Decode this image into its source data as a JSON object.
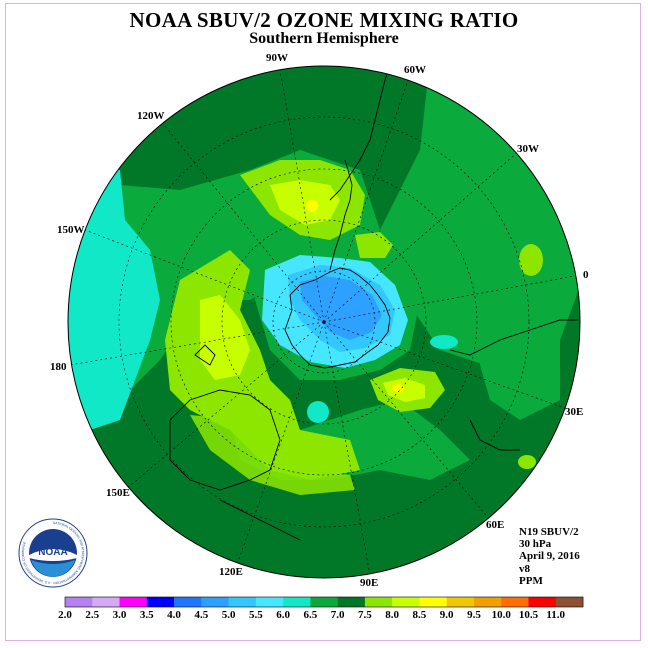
{
  "title": "NOAA SBUV/2 OZONE MIXING RATIO",
  "subtitle": "Southern Hemisphere",
  "longitude_labels": [
    "90W",
    "60W",
    "30W",
    "0",
    "30E",
    "60E",
    "90E",
    "120E",
    "150E",
    "180",
    "150W",
    "120W"
  ],
  "info": {
    "satellite": "N19 SBUV/2",
    "level": "30 hPa",
    "date": "April 9, 2016",
    "version": "v8",
    "units": "PPM"
  },
  "logo": {
    "text": "NOAA",
    "ring_text": "NATIONAL OCEANIC AND ATMOSPHERIC ADMINISTRATION · U.S. DEPARTMENT OF COMMERCE"
  },
  "colorbar": {
    "ticks": [
      "2.0",
      "2.5",
      "3.0",
      "3.5",
      "4.0",
      "4.5",
      "5.0",
      "5.5",
      "6.0",
      "6.5",
      "7.0",
      "7.5",
      "8.0",
      "8.5",
      "9.0",
      "9.5",
      "10.0",
      "10.5",
      "11.0"
    ],
    "colors": [
      "#b482f0",
      "#d2aaf5",
      "#ff00ff",
      "#0000ff",
      "#1e78ff",
      "#2ea0ff",
      "#32c8ff",
      "#46e6ff",
      "#10e8c8",
      "#0aaa3c",
      "#007828",
      "#8ce600",
      "#c8ff00",
      "#ffff00",
      "#f0c800",
      "#f0a000",
      "#ff6e00",
      "#ff0000",
      "#8c5032"
    ]
  },
  "colors": {
    "ocean_background": "#007828",
    "mid_green": "#0aaa3c",
    "lime": "#8ce600",
    "yellow_green": "#c8ff00",
    "cyan": "#46e6ff",
    "turquoise": "#10e8c8",
    "light_blue": "#32c8ff",
    "blue": "#2ea0ff"
  }
}
